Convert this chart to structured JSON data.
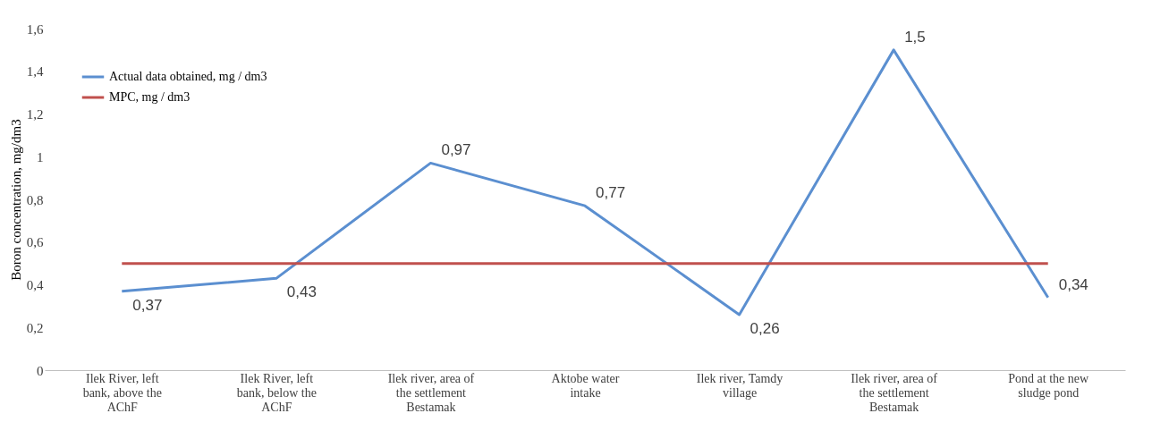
{
  "chart_data": {
    "type": "line",
    "ylabel": "Boron concentration, mg/dm3",
    "categories": [
      "Ilek River, left\nbank, above the\nAChF",
      "Ilek River, left\nbank, below the\nAChF",
      "Ilek river, area of\nthe settlement\nBestamak",
      "Aktobe water\nintake",
      "Ilek river, Tamdy\nvillage",
      "Ilek river, area of\nthe settlement\nBestamak",
      "Pond at the new\nsludge pond"
    ],
    "series": [
      {
        "name": "Actual data obtained, mg / dm3",
        "color": "#5b8fd0",
        "values": [
          0.37,
          0.43,
          0.97,
          0.77,
          0.26,
          1.5,
          0.34
        ],
        "value_labels": [
          "0,37",
          "0,43",
          "0,97",
          "0,77",
          "0,26",
          "1,5",
          "0,34"
        ]
      },
      {
        "name": "MPC, mg / dm3",
        "color": "#c0504d",
        "values": [
          0.5,
          0.5,
          0.5,
          0.5,
          0.5,
          0.5,
          0.5
        ]
      }
    ],
    "ylim": [
      0,
      1.6
    ],
    "yticks": [
      0,
      {
        "value": 0.2,
        "label": "0,2"
      },
      {
        "value": 0.4,
        "label": "0,4"
      },
      {
        "value": 0.6,
        "label": "0,6"
      },
      {
        "value": 0.8,
        "label": "0,8"
      },
      1,
      {
        "value": 1.2,
        "label": "1,2"
      },
      {
        "value": 1.4,
        "label": "1,4"
      },
      {
        "value": 1.6,
        "label": "1,6"
      }
    ],
    "grid": false,
    "legend": "top left",
    "marker": "none",
    "line_style": "solid"
  }
}
